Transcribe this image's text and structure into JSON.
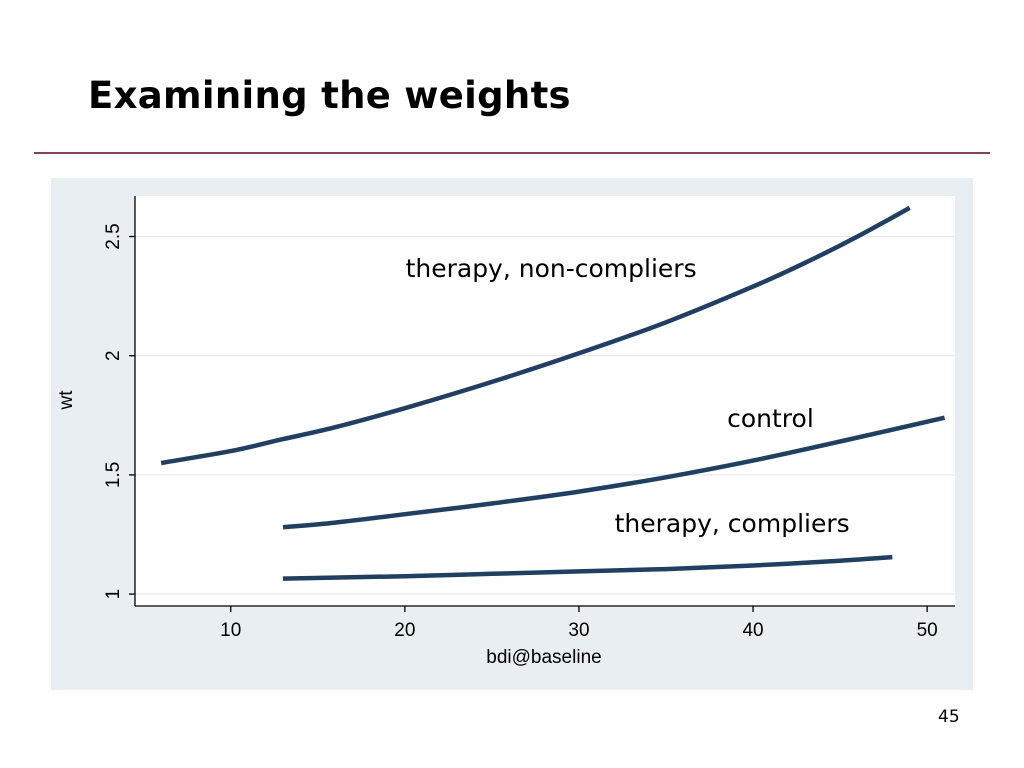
{
  "slide": {
    "title": "Examining the weights",
    "page_number": "45"
  },
  "colors": {
    "rule": "#8c3b5e",
    "panel": "#e8eef1",
    "plot": "#ffffff",
    "series": "#1e3f66",
    "grid": "#eaeaea"
  },
  "chart_data": {
    "type": "line",
    "title": "",
    "xlabel": "bdi@baseline",
    "ylabel": "wt",
    "xlim": [
      4.5,
      51.6
    ],
    "ylim": [
      0.95,
      2.67
    ],
    "xticks": [
      10,
      20,
      30,
      40,
      50
    ],
    "yticks": [
      1,
      1.5,
      2,
      2.5
    ],
    "xtick_labels": [
      "10",
      "20",
      "30",
      "40",
      "50"
    ],
    "ytick_labels": [
      "1",
      "1.5",
      "2",
      "2.5"
    ],
    "grid": true,
    "legend": "none",
    "series": [
      {
        "name": "therapy, non-compliers",
        "x": [
          6,
          10,
          13,
          16,
          20,
          25,
          30,
          35,
          40,
          43,
          46,
          49
        ],
        "y": [
          1.55,
          1.6,
          1.65,
          1.7,
          1.78,
          1.89,
          2.01,
          2.14,
          2.29,
          2.39,
          2.5,
          2.62
        ]
      },
      {
        "name": "control",
        "x": [
          13,
          16,
          20,
          25,
          30,
          35,
          40,
          45,
          51
        ],
        "y": [
          1.28,
          1.3,
          1.335,
          1.38,
          1.43,
          1.49,
          1.56,
          1.64,
          1.74
        ]
      },
      {
        "name": "therapy, compliers",
        "x": [
          13,
          20,
          25,
          30,
          35,
          40,
          45,
          48
        ],
        "y": [
          1.065,
          1.075,
          1.085,
          1.095,
          1.105,
          1.12,
          1.14,
          1.155
        ]
      }
    ],
    "annotations": [
      {
        "text": "therapy, non-compliers",
        "x": 28.4,
        "y": 2.33
      },
      {
        "text": "control",
        "x": 41,
        "y": 1.7
      },
      {
        "text": "therapy, compliers",
        "x": 38.8,
        "y": 1.26
      }
    ]
  }
}
